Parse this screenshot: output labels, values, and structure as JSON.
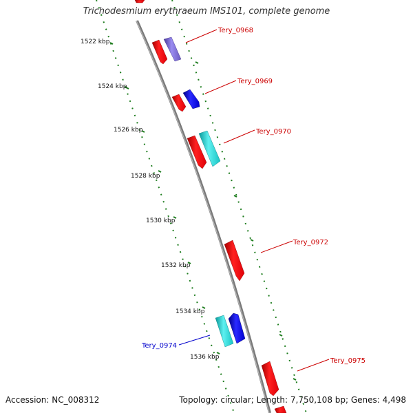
{
  "title": "Trichodesmium erythraeum IMS101, complete genome",
  "accession": "Accession: NC_008312",
  "summary": "Topology: circular; Length: 7,750,108 bp; Genes: 4,498",
  "colors": {
    "background": "#ffffff",
    "backbone": "#8a8a8a",
    "tick_dashes": "#1e7d1e",
    "forward_label": "#cc0000",
    "reverse_label": "#0000cc",
    "gene_red": "#e8000a",
    "gene_blue": "#0000dd",
    "gene_cyan": "#17c9c9",
    "gene_purple": "#7060c8"
  },
  "ticks": [
    "1522 kbp",
    "1524 kbp",
    "1526 kbp",
    "1528 kbp",
    "1530 kbp",
    "1532 kbp",
    "1534 kbp",
    "1536 kbp"
  ],
  "gene_labels": [
    "Tery_0968",
    "Tery_0969",
    "Tery_0970",
    "Tery_0972",
    "Tery_0974",
    "Tery_0975"
  ]
}
